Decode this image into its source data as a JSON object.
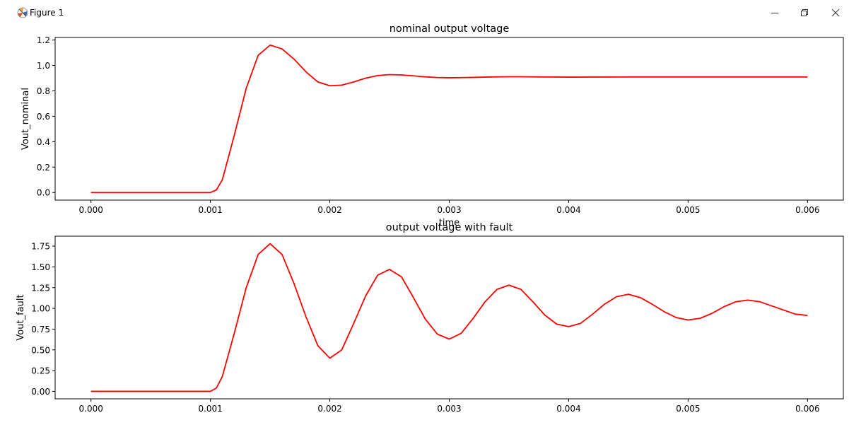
{
  "window": {
    "title": "Figure 1",
    "controls": [
      "minimize",
      "restore",
      "close"
    ]
  },
  "colors": {
    "line": "#ff0000",
    "axes": "#000000",
    "background": "#ffffff"
  },
  "chart_data": [
    {
      "type": "line",
      "title": "nominal output voltage",
      "xlabel": "time",
      "ylabel": "Vout_nominal",
      "xlim": [
        -0.0003,
        0.0063
      ],
      "ylim": [
        -0.06,
        1.22
      ],
      "xticks": [
        0.0,
        0.001,
        0.002,
        0.003,
        0.004,
        0.005,
        0.006
      ],
      "xtick_labels": [
        "0.000",
        "0.001",
        "0.002",
        "0.003",
        "0.004",
        "0.005",
        "0.006"
      ],
      "yticks": [
        0.0,
        0.2,
        0.4,
        0.6,
        0.8,
        1.0,
        1.2
      ],
      "ytick_labels": [
        "0.0",
        "0.2",
        "0.4",
        "0.6",
        "0.8",
        "1.0",
        "1.2"
      ],
      "grid": false,
      "series": [
        {
          "color": "#ff0000",
          "points": [
            [
              0,
              0
            ],
            [
              0.001,
              0
            ],
            [
              0.00105,
              0.02
            ],
            [
              0.0011,
              0.1
            ],
            [
              0.0012,
              0.45
            ],
            [
              0.0013,
              0.82
            ],
            [
              0.0014,
              1.08
            ],
            [
              0.0015,
              1.16
            ],
            [
              0.0016,
              1.13
            ],
            [
              0.0017,
              1.05
            ],
            [
              0.0018,
              0.95
            ],
            [
              0.0019,
              0.87
            ],
            [
              0.002,
              0.84
            ],
            [
              0.0021,
              0.845
            ],
            [
              0.0022,
              0.87
            ],
            [
              0.0023,
              0.9
            ],
            [
              0.0024,
              0.92
            ],
            [
              0.0025,
              0.928
            ],
            [
              0.0026,
              0.925
            ],
            [
              0.0027,
              0.918
            ],
            [
              0.0028,
              0.91
            ],
            [
              0.0029,
              0.905
            ],
            [
              0.003,
              0.903
            ],
            [
              0.0031,
              0.904
            ],
            [
              0.0032,
              0.906
            ],
            [
              0.0033,
              0.908
            ],
            [
              0.0034,
              0.91
            ],
            [
              0.0035,
              0.911
            ],
            [
              0.0036,
              0.911
            ],
            [
              0.0037,
              0.91
            ],
            [
              0.0038,
              0.909
            ],
            [
              0.004,
              0.908
            ],
            [
              0.0045,
              0.909
            ],
            [
              0.005,
              0.909
            ],
            [
              0.0055,
              0.909
            ],
            [
              0.006,
              0.909
            ]
          ]
        }
      ]
    },
    {
      "type": "line",
      "title": "output voltage with fault",
      "xlabel": "",
      "ylabel": "Vout_fault",
      "xlim": [
        -0.0003,
        0.0063
      ],
      "ylim": [
        -0.09,
        1.87
      ],
      "xticks": [
        0.0,
        0.001,
        0.002,
        0.003,
        0.004,
        0.005,
        0.006
      ],
      "xtick_labels": [
        "0.000",
        "0.001",
        "0.002",
        "0.003",
        "0.004",
        "0.005",
        "0.006"
      ],
      "yticks": [
        0.0,
        0.25,
        0.5,
        0.75,
        1.0,
        1.25,
        1.5,
        1.75
      ],
      "ytick_labels": [
        "0.00",
        "0.25",
        "0.50",
        "0.75",
        "1.00",
        "1.25",
        "1.50",
        "1.75"
      ],
      "grid": false,
      "series": [
        {
          "color": "#ff0000",
          "points": [
            [
              0,
              0
            ],
            [
              0.001,
              0
            ],
            [
              0.00105,
              0.04
            ],
            [
              0.0011,
              0.18
            ],
            [
              0.0012,
              0.7
            ],
            [
              0.0013,
              1.25
            ],
            [
              0.0014,
              1.65
            ],
            [
              0.0015,
              1.78
            ],
            [
              0.0016,
              1.65
            ],
            [
              0.0017,
              1.3
            ],
            [
              0.0018,
              0.9
            ],
            [
              0.0019,
              0.55
            ],
            [
              0.002,
              0.4
            ],
            [
              0.0021,
              0.5
            ],
            [
              0.0022,
              0.82
            ],
            [
              0.0023,
              1.15
            ],
            [
              0.0024,
              1.4
            ],
            [
              0.0025,
              1.47
            ],
            [
              0.0026,
              1.38
            ],
            [
              0.0027,
              1.13
            ],
            [
              0.0028,
              0.87
            ],
            [
              0.0029,
              0.69
            ],
            [
              0.003,
              0.63
            ],
            [
              0.0031,
              0.7
            ],
            [
              0.0032,
              0.88
            ],
            [
              0.0033,
              1.08
            ],
            [
              0.0034,
              1.23
            ],
            [
              0.0035,
              1.28
            ],
            [
              0.0036,
              1.23
            ],
            [
              0.0037,
              1.08
            ],
            [
              0.0038,
              0.92
            ],
            [
              0.0039,
              0.81
            ],
            [
              0.004,
              0.78
            ],
            [
              0.0041,
              0.82
            ],
            [
              0.0042,
              0.93
            ],
            [
              0.0043,
              1.05
            ],
            [
              0.0044,
              1.14
            ],
            [
              0.0045,
              1.17
            ],
            [
              0.0046,
              1.13
            ],
            [
              0.0047,
              1.05
            ],
            [
              0.0048,
              0.96
            ],
            [
              0.0049,
              0.89
            ],
            [
              0.005,
              0.86
            ],
            [
              0.0051,
              0.88
            ],
            [
              0.0052,
              0.94
            ],
            [
              0.0053,
              1.02
            ],
            [
              0.0054,
              1.08
            ],
            [
              0.0055,
              1.1
            ],
            [
              0.0056,
              1.08
            ],
            [
              0.0057,
              1.03
            ],
            [
              0.0058,
              0.98
            ],
            [
              0.0059,
              0.93
            ],
            [
              0.006,
              0.915
            ]
          ]
        }
      ]
    }
  ]
}
